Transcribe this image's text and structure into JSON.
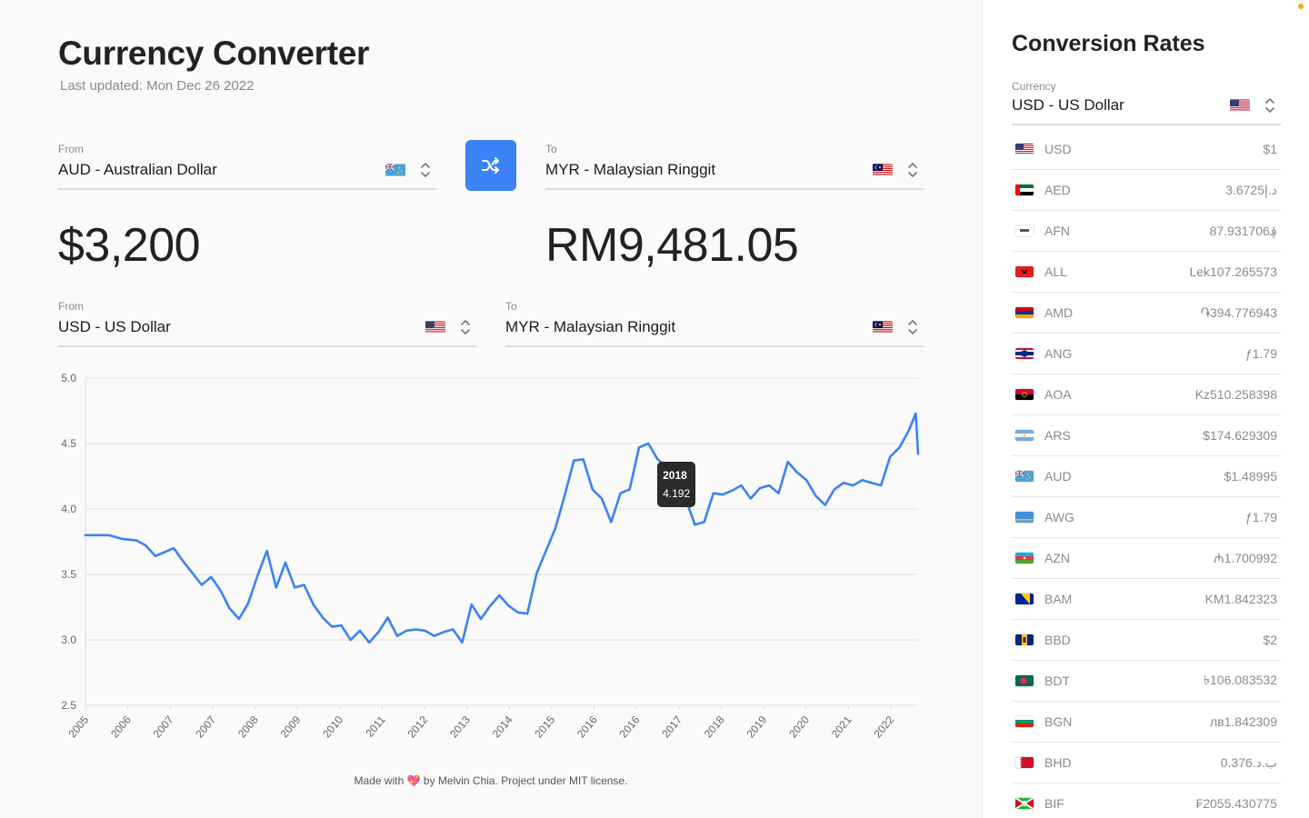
{
  "header": {
    "title": "Currency Converter",
    "last_updated": "Last updated: Mon Dec 26 2022"
  },
  "converter": {
    "from": {
      "label": "From",
      "value": "AUD - Australian Dollar",
      "flag_icon": "australia-flag-icon"
    },
    "to": {
      "label": "To",
      "value": "MYR - Malaysian Ringgit",
      "flag_icon": "malaysia-flag-icon"
    },
    "swap_icon": "shuffle-icon",
    "from_amount": "$3,200",
    "to_amount": "RM9,481.05"
  },
  "history": {
    "from": {
      "label": "From",
      "value": "USD - US Dollar",
      "flag_icon": "usa-flag-icon"
    },
    "to": {
      "label": "To",
      "value": "MYR - Malaysian Ringgit",
      "flag_icon": "malaysia-flag-icon"
    }
  },
  "chart_data": {
    "type": "line",
    "title": "",
    "xlabel": "",
    "ylabel": "",
    "x_ticks": [
      "2005",
      "2006",
      "2007",
      "2007",
      "2008",
      "2009",
      "2010",
      "2011",
      "2012",
      "2013",
      "2014",
      "2015",
      "2016",
      "2016",
      "2017",
      "2018",
      "2019",
      "2020",
      "2021",
      "2022"
    ],
    "y_ticks": [
      "5.0",
      "4.5",
      "4.0",
      "3.5",
      "3.0",
      "2.5"
    ],
    "ylim": [
      2.5,
      5.0
    ],
    "xlim": [
      2005.0,
      2022.9
    ],
    "grid": true,
    "color": "#3b82f6",
    "series": [
      {
        "x": [
          2005.0,
          2005.3,
          2005.5,
          2005.8,
          2006.1,
          2006.3,
          2006.5,
          2006.7,
          2006.9,
          2007.1,
          2007.3,
          2007.5,
          2007.7,
          2007.9,
          2008.1,
          2008.3,
          2008.5,
          2008.7,
          2008.9,
          2009.1,
          2009.3,
          2009.5,
          2009.7,
          2009.9,
          2010.1,
          2010.3,
          2010.5,
          2010.7,
          2010.9,
          2011.1,
          2011.3,
          2011.5,
          2011.7,
          2011.9,
          2012.1,
          2012.3,
          2012.5,
          2012.7,
          2012.9,
          2013.1,
          2013.3,
          2013.5,
          2013.7,
          2013.9,
          2014.1,
          2014.3,
          2014.5,
          2014.7,
          2014.9,
          2015.1,
          2015.3,
          2015.5,
          2015.7,
          2015.9,
          2016.1,
          2016.3,
          2016.5,
          2016.7,
          2016.9,
          2017.1,
          2017.3,
          2017.5,
          2017.7,
          2017.9,
          2018.1,
          2018.3,
          2018.5,
          2018.7,
          2018.9,
          2019.1,
          2019.3,
          2019.5,
          2019.7,
          2019.9,
          2020.1,
          2020.3,
          2020.5,
          2020.7,
          2020.9,
          2021.1,
          2021.3,
          2021.5,
          2021.7,
          2021.9,
          2022.1,
          2022.3,
          2022.5,
          2022.7,
          2022.85,
          2022.9
        ],
        "y": [
          3.8,
          3.8,
          3.8,
          3.77,
          3.76,
          3.72,
          3.64,
          3.67,
          3.7,
          3.6,
          3.51,
          3.42,
          3.48,
          3.38,
          3.24,
          3.16,
          3.28,
          3.49,
          3.68,
          3.4,
          3.59,
          3.4,
          3.42,
          3.27,
          3.17,
          3.1,
          3.11,
          3.0,
          3.07,
          2.98,
          3.06,
          3.17,
          3.03,
          3.07,
          3.08,
          3.07,
          3.03,
          3.06,
          3.08,
          2.98,
          3.27,
          3.16,
          3.26,
          3.34,
          3.26,
          3.21,
          3.2,
          3.51,
          3.68,
          3.85,
          4.1,
          4.37,
          4.38,
          4.15,
          4.08,
          3.9,
          4.12,
          4.15,
          4.47,
          4.5,
          4.38,
          4.32,
          4.28,
          4.08,
          3.88,
          3.9,
          4.12,
          4.11,
          4.14,
          4.18,
          4.08,
          4.16,
          4.18,
          4.12,
          4.36,
          4.28,
          4.22,
          4.1,
          4.03,
          4.15,
          4.2,
          4.18,
          4.22,
          4.2,
          4.18,
          4.4,
          4.47,
          4.6,
          4.73,
          4.42
        ]
      }
    ],
    "tooltip": {
      "x": "2018",
      "y": "4.192"
    }
  },
  "footer": {
    "pre": "Made with",
    "post": "by Melvin Chia. Project under MIT license."
  },
  "sidebar": {
    "title": "Conversion Rates",
    "currency_label": "Currency",
    "currency_value": "USD - US Dollar",
    "rates": [
      {
        "code": "USD",
        "value": "$1",
        "flag": "usa"
      },
      {
        "code": "AED",
        "value": "3.6725د.إ",
        "flag": "aed"
      },
      {
        "code": "AFN",
        "value": "87.931706؋",
        "flag": "afn"
      },
      {
        "code": "ALL",
        "value": "Lek107.265573",
        "flag": "all"
      },
      {
        "code": "AMD",
        "value": "֏394.776943",
        "flag": "amd"
      },
      {
        "code": "ANG",
        "value": "ƒ1.79",
        "flag": "ang"
      },
      {
        "code": "AOA",
        "value": "Kz510.258398",
        "flag": "aoa"
      },
      {
        "code": "ARS",
        "value": "$174.629309",
        "flag": "ars"
      },
      {
        "code": "AUD",
        "value": "$1.48995",
        "flag": "aud"
      },
      {
        "code": "AWG",
        "value": "ƒ1.79",
        "flag": "awg"
      },
      {
        "code": "AZN",
        "value": "₼1.700992",
        "flag": "azn"
      },
      {
        "code": "BAM",
        "value": "KM1.842323",
        "flag": "bam"
      },
      {
        "code": "BBD",
        "value": "$2",
        "flag": "bbd"
      },
      {
        "code": "BDT",
        "value": "৳106.083532",
        "flag": "bdt"
      },
      {
        "code": "BGN",
        "value": "лв1.842309",
        "flag": "bgn"
      },
      {
        "code": "BHD",
        "value": "0.376.ب.د",
        "flag": "bhd"
      },
      {
        "code": "BIF",
        "value": "₣2055.430775",
        "flag": "bif"
      }
    ]
  }
}
